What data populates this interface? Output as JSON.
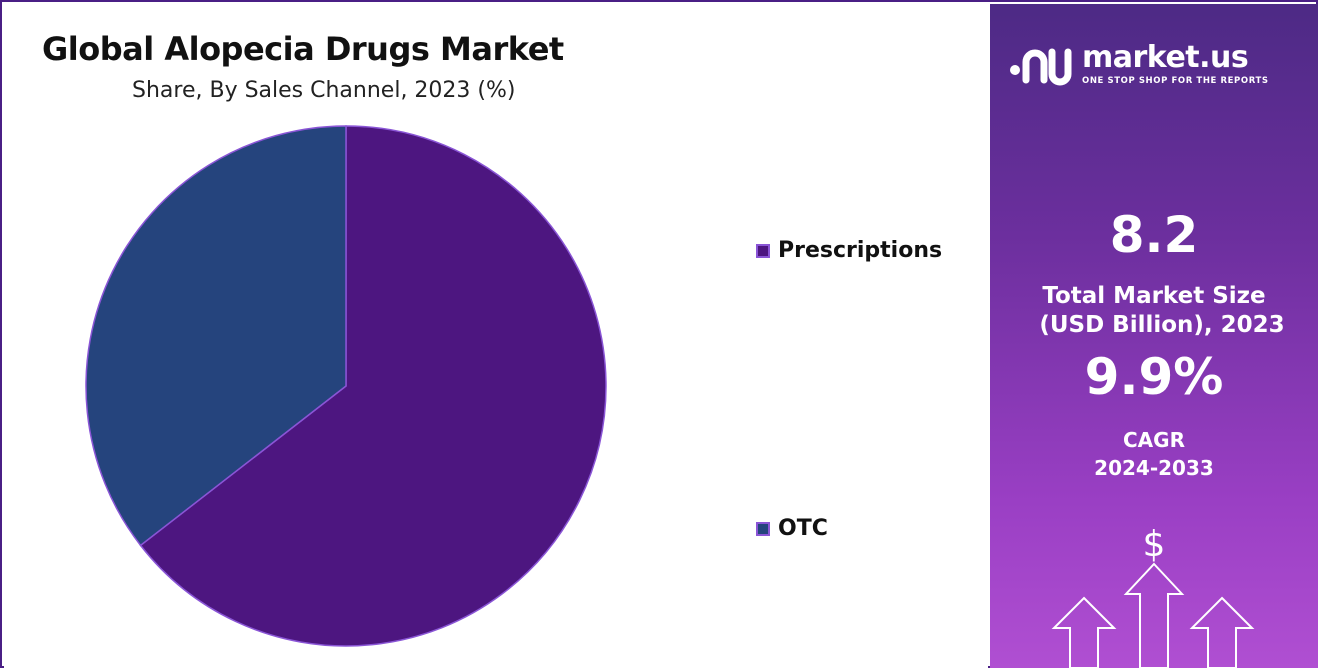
{
  "chart_data": {
    "type": "pie",
    "title": "Global Alopecia Drugs Market",
    "subtitle": "Share, By Sales Channel, 2023 (%)",
    "slices": [
      {
        "name": "Prescriptions",
        "value": 64.5,
        "color": "#4d1680"
      },
      {
        "name": "OTC",
        "value": 35.5,
        "color": "#25447d"
      }
    ],
    "legend_position": "right"
  },
  "sidebar": {
    "brand_name": "market.us",
    "tagline": "ONE STOP SHOP FOR THE REPORTS",
    "market_size_value": "8.2",
    "market_size_label_line1": "Total Market Size",
    "market_size_label_line2": "(USD Billion), 2023",
    "cagr_value": "9.9%",
    "cagr_label": "CAGR",
    "cagr_period": "2024-2033",
    "dollar_symbol": "$",
    "icons": [
      "market-us-logo-icon",
      "dollar-growth-arrows-icon"
    ]
  }
}
